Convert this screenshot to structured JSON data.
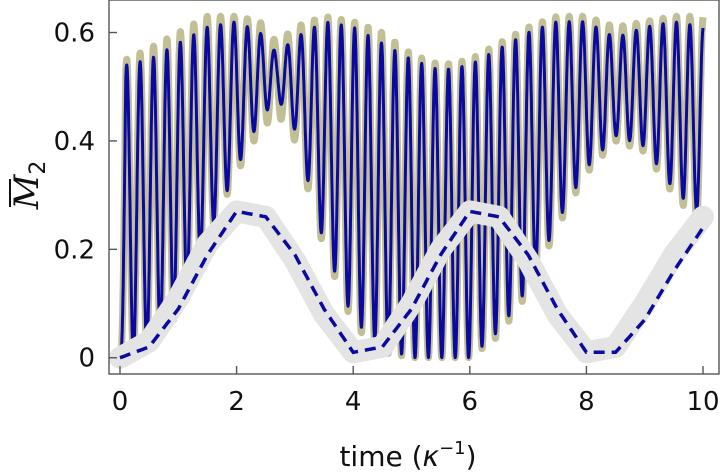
{
  "chart_data": {
    "type": "line",
    "title": "",
    "xlabel": "time (κ⁻¹)",
    "xlabel_text": "time (",
    "xlabel_symbol": "κ",
    "xlabel_exp": "−1",
    "xlabel_close": ")",
    "ylabel": "M̄₂",
    "ylabel_symbol": "M",
    "ylabel_sub": "2",
    "xlim": [
      0,
      10
    ],
    "ylim": [
      -0.03,
      0.66
    ],
    "xticks": [
      "0",
      "2",
      "4",
      "6",
      "8",
      "10"
    ],
    "xtick_values": [
      0,
      2,
      4,
      6,
      8,
      10
    ],
    "yticks": [
      "0",
      "0.2",
      "0.4",
      "0.6"
    ],
    "ytick_values": [
      0,
      0.2,
      0.4,
      0.6
    ],
    "grid": false,
    "legend": "none",
    "series": [
      {
        "style": "thick-band",
        "color": "#c2bf96",
        "description_points": {
          "x": [
            0,
            0.1,
            0.5,
            1.0,
            1.5,
            2.0,
            2.4,
            2.7,
            3.0,
            3.5,
            4.0,
            4.5,
            5.0,
            5.5,
            6.0,
            6.5,
            7.0,
            7.5,
            8.0,
            8.5,
            9.0,
            9.5,
            10.0
          ],
          "upper": [
            0.0,
            0.55,
            0.57,
            0.6,
            0.63,
            0.63,
            0.62,
            0.58,
            0.61,
            0.63,
            0.62,
            0.6,
            0.56,
            0.54,
            0.55,
            0.58,
            0.61,
            0.63,
            0.63,
            0.61,
            0.62,
            0.63,
            0.63
          ],
          "lower": [
            0.0,
            0.0,
            0.02,
            0.08,
            0.22,
            0.34,
            0.42,
            0.45,
            0.4,
            0.2,
            0.06,
            0.01,
            0.0,
            0.0,
            0.0,
            0.04,
            0.12,
            0.24,
            0.34,
            0.4,
            0.38,
            0.3,
            0.24
          ]
        }
      },
      {
        "style": "solid",
        "color": "#0a0aa0",
        "oscillation_period": 0.23,
        "envelope": {
          "x": [
            0,
            0.1,
            0.5,
            1.0,
            1.5,
            2.0,
            2.4,
            2.7,
            3.0,
            3.5,
            4.0,
            4.5,
            5.0,
            5.5,
            6.0,
            6.5,
            7.0,
            7.5,
            8.0,
            8.5,
            9.0,
            9.5,
            10.0
          ],
          "upper": [
            0.0,
            0.54,
            0.55,
            0.58,
            0.61,
            0.62,
            0.6,
            0.56,
            0.59,
            0.62,
            0.61,
            0.58,
            0.55,
            0.53,
            0.54,
            0.57,
            0.6,
            0.62,
            0.62,
            0.59,
            0.61,
            0.62,
            0.61
          ],
          "lower": [
            0.0,
            0.0,
            0.02,
            0.09,
            0.22,
            0.35,
            0.44,
            0.48,
            0.42,
            0.21,
            0.07,
            0.02,
            0.0,
            0.0,
            0.0,
            0.05,
            0.13,
            0.25,
            0.35,
            0.41,
            0.39,
            0.31,
            0.26
          ]
        }
      },
      {
        "style": "wide-band",
        "color": "#e4e4e4",
        "x": [
          0,
          0.5,
          1.0,
          1.5,
          2.0,
          2.5,
          3.0,
          3.5,
          4.0,
          4.5,
          5.0,
          5.5,
          6.0,
          6.5,
          7.0,
          7.5,
          8.0,
          8.5,
          9.0,
          9.5,
          10.0
        ],
        "y": [
          0.0,
          0.03,
          0.11,
          0.21,
          0.27,
          0.26,
          0.18,
          0.08,
          0.01,
          0.02,
          0.1,
          0.2,
          0.27,
          0.26,
          0.18,
          0.08,
          0.01,
          0.02,
          0.1,
          0.19,
          0.26
        ]
      },
      {
        "style": "dashed",
        "color": "#0a0aa0",
        "x": [
          0,
          0.5,
          1.0,
          1.5,
          2.0,
          2.5,
          3.0,
          3.5,
          4.0,
          4.5,
          5.0,
          5.5,
          6.0,
          6.5,
          7.0,
          7.5,
          8.0,
          8.5,
          9.0,
          9.5,
          10.0
        ],
        "y": [
          0.0,
          0.02,
          0.09,
          0.19,
          0.27,
          0.26,
          0.19,
          0.09,
          0.01,
          0.02,
          0.09,
          0.19,
          0.27,
          0.26,
          0.19,
          0.09,
          0.01,
          0.01,
          0.07,
          0.16,
          0.24
        ]
      }
    ]
  }
}
